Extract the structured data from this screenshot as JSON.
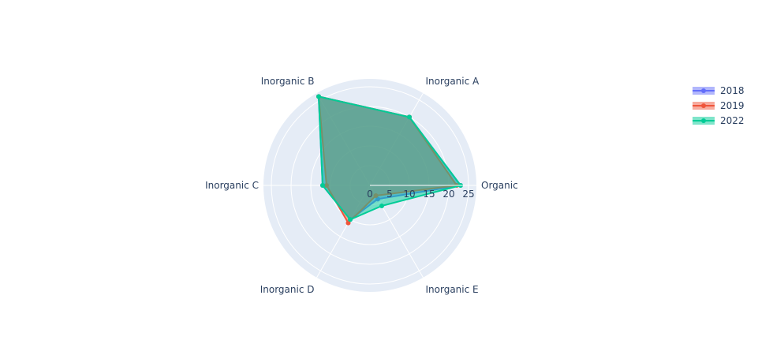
{
  "chart_data": {
    "type": "radar",
    "title": "",
    "categories": [
      "Organic",
      "Inorganic A",
      "Inorganic B",
      "Inorganic C",
      "Inorganic D",
      "Inorganic E"
    ],
    "radial_range": [
      0,
      27
    ],
    "radial_ticks": [
      "0",
      "5",
      "10",
      "15",
      "20",
      "25"
    ],
    "grid": true,
    "legend_position": "top-right",
    "series": [
      {
        "name": "2018",
        "color": "#636efa",
        "values": [
          23,
          20,
          26,
          12,
          10,
          4
        ]
      },
      {
        "name": "2019",
        "color": "#ef553b",
        "values": [
          22,
          20,
          26,
          11,
          11,
          3
        ]
      },
      {
        "name": "2022",
        "color": "#00cc96",
        "values": [
          23,
          20,
          26,
          12,
          10,
          6
        ]
      }
    ]
  }
}
